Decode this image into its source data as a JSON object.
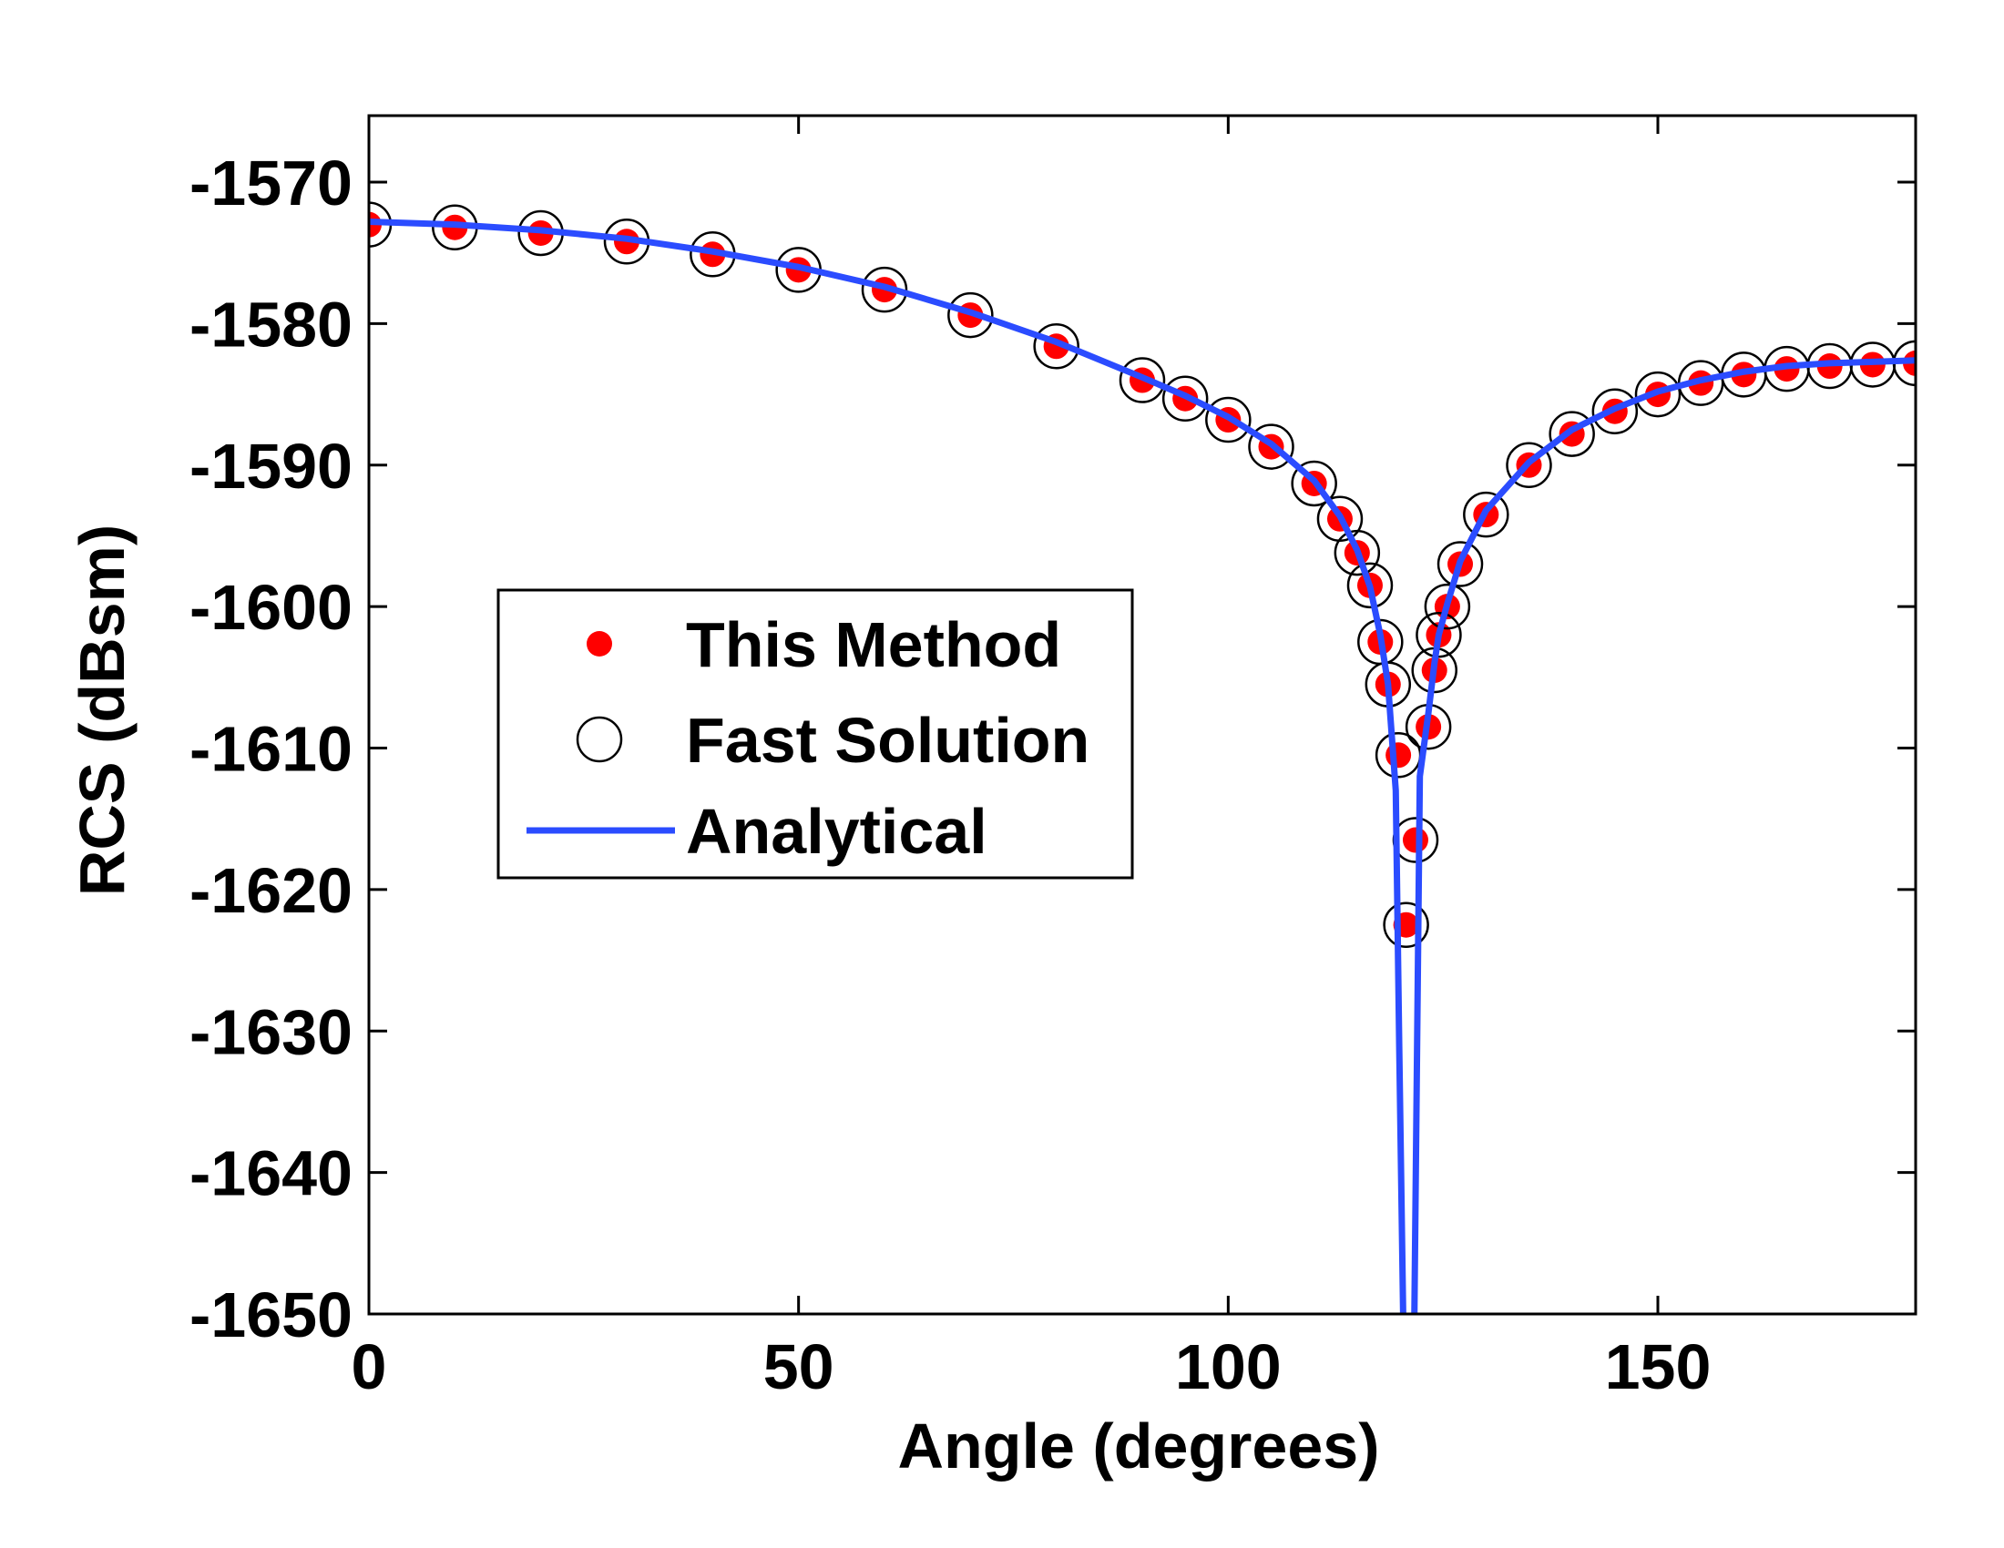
{
  "chart_data": {
    "type": "line",
    "x_label": "Angle (degrees)",
    "y_label": "RCS (dBsm)",
    "xlim": [
      0,
      180
    ],
    "xticks": [
      0,
      50,
      100,
      150
    ],
    "ylim": [
      -1650,
      -1565.3
    ],
    "yticks": [
      -1650,
      -1640,
      -1630,
      -1620,
      -1610,
      -1600,
      -1590,
      -1580,
      -1570
    ],
    "legend": "center-left",
    "series": [
      {
        "name": "This Method",
        "color": "#ff0000",
        "marker": "dot",
        "x": [
          0,
          10,
          20,
          30,
          40,
          50,
          60,
          70,
          80,
          90,
          95,
          100,
          105,
          110,
          113,
          115,
          116.5,
          117.7,
          118.6,
          119.8,
          120.7,
          121.8,
          123.3,
          124,
          124.5,
          125.5,
          127,
          130,
          135,
          140,
          145,
          150,
          155,
          160,
          165,
          170,
          175,
          180
        ],
        "values": [
          -1573,
          -1573.2,
          -1573.6,
          -1574.2,
          -1575.1,
          -1576.2,
          -1577.6,
          -1579.4,
          -1581.6,
          -1584,
          -1585.3,
          -1586.8,
          -1588.7,
          -1591.3,
          -1593.8,
          -1596.2,
          -1598.5,
          -1602.5,
          -1605.5,
          -1610.5,
          -1622.5,
          -1616.5,
          -1608.5,
          -1604.5,
          -1602,
          -1600,
          -1597,
          -1593.5,
          -1590,
          -1587.8,
          -1586.2,
          -1585,
          -1584.2,
          -1583.6,
          -1583.2,
          -1583,
          -1582.9,
          -1582.8
        ]
      },
      {
        "name": "Fast Solution",
        "color": "#000000",
        "marker": "circle",
        "x": [
          0,
          10,
          20,
          30,
          40,
          50,
          60,
          70,
          80,
          90,
          95,
          100,
          105,
          110,
          113,
          115,
          116.5,
          117.7,
          118.6,
          119.8,
          120.7,
          121.8,
          123.3,
          124,
          124.5,
          125.5,
          127,
          130,
          135,
          140,
          145,
          150,
          155,
          160,
          165,
          170,
          175,
          180
        ],
        "values": [
          -1573,
          -1573.2,
          -1573.6,
          -1574.2,
          -1575.1,
          -1576.2,
          -1577.6,
          -1579.4,
          -1581.6,
          -1584,
          -1585.3,
          -1586.8,
          -1588.7,
          -1591.3,
          -1593.8,
          -1596.2,
          -1598.5,
          -1602.5,
          -1605.5,
          -1610.5,
          -1622.5,
          -1616.5,
          -1608.5,
          -1604.5,
          -1602,
          -1600,
          -1597,
          -1593.5,
          -1590,
          -1587.8,
          -1586.2,
          -1585,
          -1584.2,
          -1583.6,
          -1583.2,
          -1583,
          -1582.9,
          -1582.8
        ]
      },
      {
        "name": "Analytical",
        "color": "#2b4cff",
        "marker": "line",
        "x": [
          0,
          10,
          20,
          30,
          40,
          50,
          60,
          70,
          80,
          90,
          95,
          100,
          105,
          110,
          113,
          115,
          116.5,
          117.7,
          118.6,
          119.5,
          119.9,
          120.6,
          121.5,
          122.3,
          123.3,
          124,
          124.5,
          125.5,
          127,
          130,
          135,
          140,
          145,
          150,
          155,
          160,
          165,
          170,
          175,
          180
        ],
        "values": [
          -1572.8,
          -1573,
          -1573.4,
          -1574,
          -1574.9,
          -1576,
          -1577.4,
          -1579.2,
          -1581.3,
          -1583.8,
          -1585.1,
          -1586.6,
          -1588.5,
          -1591.1,
          -1593.6,
          -1596,
          -1598.6,
          -1602,
          -1605.5,
          -1613,
          -1631,
          -1660,
          -1660,
          -1612,
          -1607.5,
          -1604,
          -1602,
          -1599.8,
          -1596.8,
          -1593.2,
          -1589.8,
          -1587.5,
          -1586,
          -1584.8,
          -1584,
          -1583.4,
          -1583,
          -1582.8,
          -1582.7,
          -1582.6
        ]
      }
    ]
  }
}
